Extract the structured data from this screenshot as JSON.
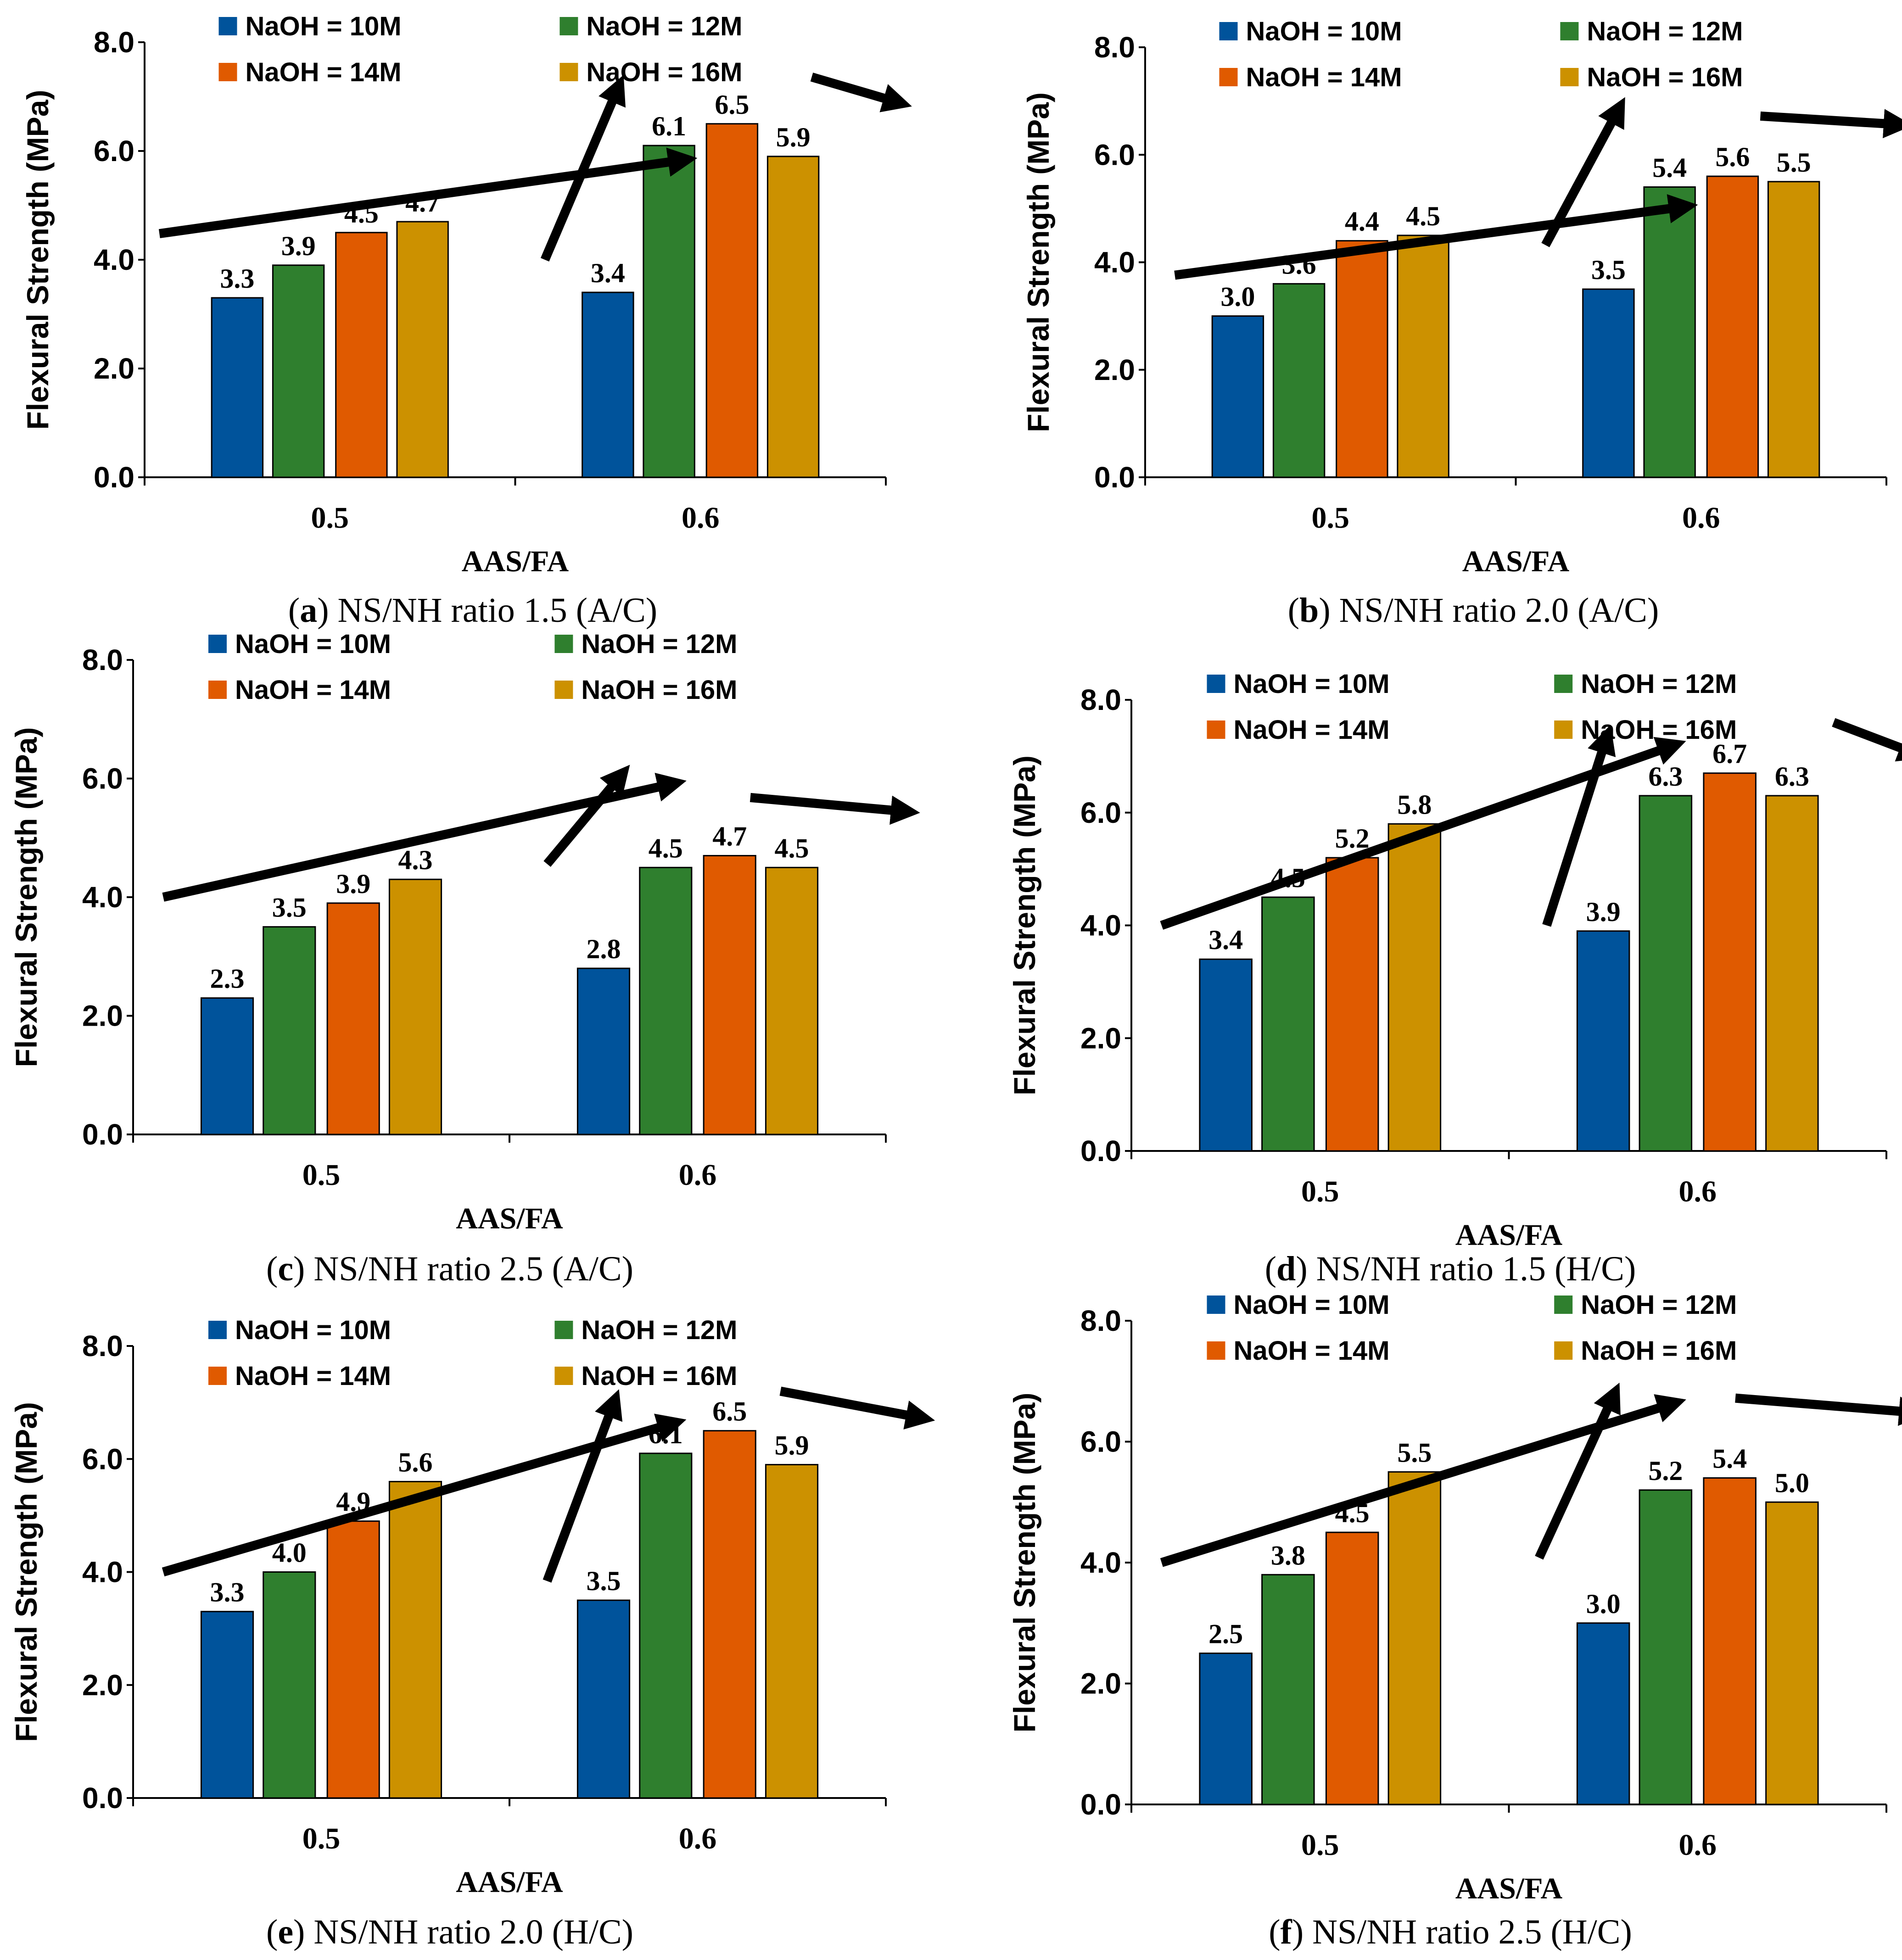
{
  "colors": {
    "NaOH = 10M": "#00539B",
    "NaOH = 12M": "#2F7F2E",
    "NaOH = 14M": "#E05A00",
    "NaOH = 16M": "#CC9100",
    "arrow": "#000000",
    "axis": "#000000"
  },
  "chart_data": [
    {
      "type": "bar",
      "caption_letter": "a",
      "caption_text": " NS/NH ratio 1.5 (A/C)",
      "xlabel": "AAS/FA",
      "ylabel": "Flexural Strength (MPa)",
      "ylim": [
        0,
        8
      ],
      "yticks": [
        "0.0",
        "2.0",
        "4.0",
        "6.0",
        "8.0"
      ],
      "categories": [
        "0.5",
        "0.6"
      ],
      "legend_position": "top",
      "series": [
        {
          "name": "NaOH = 10M",
          "values": [
            3.3,
            3.4
          ],
          "labels": [
            "3.3",
            "3.4"
          ]
        },
        {
          "name": "NaOH = 12M",
          "values": [
            3.9,
            6.1
          ],
          "labels": [
            "3.9",
            "6.1"
          ]
        },
        {
          "name": "NaOH = 14M",
          "values": [
            4.5,
            6.5
          ],
          "labels": [
            "4.5",
            "6.5"
          ]
        },
        {
          "name": "NaOH = 16M",
          "values": [
            4.7,
            5.9
          ],
          "labels": [
            "4.7",
            "5.9"
          ]
        }
      ],
      "trend_arrows": [
        "increasing trend over 0.5",
        "sharp increase at 0.6",
        "decrease at 0.6 (14M to 16M)"
      ]
    },
    {
      "type": "bar",
      "caption_letter": "b",
      "caption_text": " NS/NH ratio 2.0 (A/C)",
      "xlabel": "AAS/FA",
      "ylabel": "Flexural Strength (MPa)",
      "ylim": [
        0,
        8
      ],
      "yticks": [
        "0.0",
        "2.0",
        "4.0",
        "6.0",
        "8.0"
      ],
      "categories": [
        "0.5",
        "0.6"
      ],
      "legend_position": "top",
      "series": [
        {
          "name": "NaOH = 10M",
          "values": [
            3.0,
            3.5
          ],
          "labels": [
            "3.0",
            "3.5"
          ]
        },
        {
          "name": "NaOH = 12M",
          "values": [
            3.6,
            5.4
          ],
          "labels": [
            "3.6",
            "5.4"
          ]
        },
        {
          "name": "NaOH = 14M",
          "values": [
            4.4,
            5.6
          ],
          "labels": [
            "4.4",
            "5.6"
          ]
        },
        {
          "name": "NaOH = 16M",
          "values": [
            4.5,
            5.5
          ],
          "labels": [
            "4.5",
            "5.5"
          ]
        }
      ],
      "trend_arrows": [
        "increasing trend over 0.5",
        "sharp increase at 0.6",
        "slight decrease at 0.6"
      ]
    },
    {
      "type": "bar",
      "caption_letter": "c",
      "caption_text": " NS/NH ratio 2.5 (A/C)",
      "xlabel": "AAS/FA",
      "ylabel": "Flexural Strength (MPa)",
      "ylim": [
        0,
        8
      ],
      "yticks": [
        "0.0",
        "2.0",
        "4.0",
        "6.0",
        "8.0"
      ],
      "categories": [
        "0.5",
        "0.6"
      ],
      "legend_position": "top",
      "series": [
        {
          "name": "NaOH = 10M",
          "values": [
            2.3,
            2.8
          ],
          "labels": [
            "2.3",
            "2.8"
          ]
        },
        {
          "name": "NaOH = 12M",
          "values": [
            3.5,
            4.5
          ],
          "labels": [
            "3.5",
            "4.5"
          ]
        },
        {
          "name": "NaOH = 14M",
          "values": [
            3.9,
            4.7
          ],
          "labels": [
            "3.9",
            "4.7"
          ]
        },
        {
          "name": "NaOH = 16M",
          "values": [
            4.3,
            4.5
          ],
          "labels": [
            "4.3",
            "4.5"
          ]
        }
      ],
      "trend_arrows": [
        "increasing trend over 0.5",
        "sharp increase at 0.6",
        "slight decrease at 0.6"
      ]
    },
    {
      "type": "bar",
      "caption_letter": "d",
      "caption_text": " NS/NH ratio 1.5 (H/C)",
      "xlabel": "AAS/FA",
      "ylabel": "Flexural Strength (MPa)",
      "ylim": [
        0,
        8
      ],
      "yticks": [
        "0.0",
        "2.0",
        "4.0",
        "6.0",
        "8.0"
      ],
      "categories": [
        "0.5",
        "0.6"
      ],
      "legend_position": "top",
      "series": [
        {
          "name": "NaOH = 10M",
          "values": [
            3.4,
            3.9
          ],
          "labels": [
            "3.4",
            "3.9"
          ]
        },
        {
          "name": "NaOH = 12M",
          "values": [
            4.5,
            6.3
          ],
          "labels": [
            "4.5",
            "6.3"
          ]
        },
        {
          "name": "NaOH = 14M",
          "values": [
            5.2,
            6.7
          ],
          "labels": [
            "5.2",
            "6.7"
          ]
        },
        {
          "name": "NaOH = 16M",
          "values": [
            5.8,
            6.3
          ],
          "labels": [
            "5.8",
            "6.3"
          ]
        }
      ],
      "trend_arrows": [
        "increasing trend over 0.5",
        "sharp increase at 0.6",
        "decrease at 0.6 (14M to 16M)"
      ]
    },
    {
      "type": "bar",
      "caption_letter": "e",
      "caption_text": " NS/NH ratio 2.0 (H/C)",
      "xlabel": "AAS/FA",
      "ylabel": "Flexural Strength (MPa)",
      "ylim": [
        0,
        8
      ],
      "yticks": [
        "0.0",
        "2.0",
        "4.0",
        "6.0",
        "8.0"
      ],
      "categories": [
        "0.5",
        "0.6"
      ],
      "legend_position": "top",
      "series": [
        {
          "name": "NaOH = 10M",
          "values": [
            3.3,
            3.5
          ],
          "labels": [
            "3.3",
            "3.5"
          ]
        },
        {
          "name": "NaOH = 12M",
          "values": [
            4.0,
            6.1
          ],
          "labels": [
            "4.0",
            "6.1"
          ]
        },
        {
          "name": "NaOH = 14M",
          "values": [
            4.9,
            6.5
          ],
          "labels": [
            "4.9",
            "6.5"
          ]
        },
        {
          "name": "NaOH = 16M",
          "values": [
            5.6,
            5.9
          ],
          "labels": [
            "5.6",
            "5.9"
          ]
        }
      ],
      "trend_arrows": [
        "increasing trend over 0.5",
        "sharp increase at 0.6",
        "decrease at 0.6 (14M to 16M)"
      ]
    },
    {
      "type": "bar",
      "caption_letter": "f",
      "caption_text": " NS/NH ratio 2.5 (H/C)",
      "xlabel": "AAS/FA",
      "ylabel": "Flexural Strength (MPa)",
      "ylim": [
        0,
        8
      ],
      "yticks": [
        "0.0",
        "2.0",
        "4.0",
        "6.0",
        "8.0"
      ],
      "categories": [
        "0.5",
        "0.6"
      ],
      "legend_position": "top",
      "series": [
        {
          "name": "NaOH = 10M",
          "values": [
            2.5,
            3.0
          ],
          "labels": [
            "2.5",
            "3.0"
          ]
        },
        {
          "name": "NaOH = 12M",
          "values": [
            3.8,
            5.2
          ],
          "labels": [
            "3.8",
            "5.2"
          ]
        },
        {
          "name": "NaOH = 14M",
          "values": [
            4.5,
            5.4
          ],
          "labels": [
            "4.5",
            "5.4"
          ]
        },
        {
          "name": "NaOH = 16M",
          "values": [
            5.5,
            5.0
          ],
          "labels": [
            "5.5",
            "5.0"
          ]
        }
      ],
      "trend_arrows": [
        "increasing trend over 0.5",
        "sharp increase at 0.6",
        "slight decrease at 0.6"
      ]
    }
  ]
}
